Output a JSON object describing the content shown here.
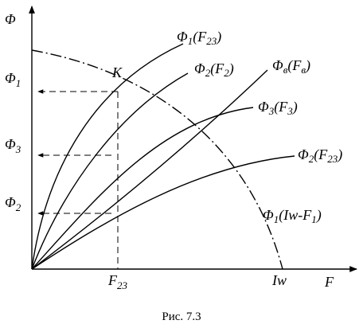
{
  "axes": {
    "y": [
      "Φ"
    ],
    "x": [
      "F"
    ]
  },
  "y_marks": [
    [
      "Φ",
      "1"
    ],
    [
      "Φ",
      "3"
    ],
    [
      "Φ",
      "2"
    ]
  ],
  "x_marks": [
    [
      "F",
      "23"
    ],
    [
      "Iw"
    ]
  ],
  "point": [
    "K"
  ],
  "curves": [
    [
      "Φ",
      "1",
      "(F",
      "23",
      ")"
    ],
    [
      "Φ",
      "2",
      "(F",
      "2",
      ")"
    ],
    [
      "Φ",
      "в",
      "(F",
      "в",
      ")"
    ],
    [
      "Φ",
      "3",
      "(F",
      "3",
      ")"
    ],
    [
      "Φ",
      "2",
      "(F",
      "23",
      ")"
    ],
    [
      "Φ",
      "1",
      "(Iw-F",
      "1",
      ")"
    ]
  ],
  "caption": "Рис. 7.3"
}
